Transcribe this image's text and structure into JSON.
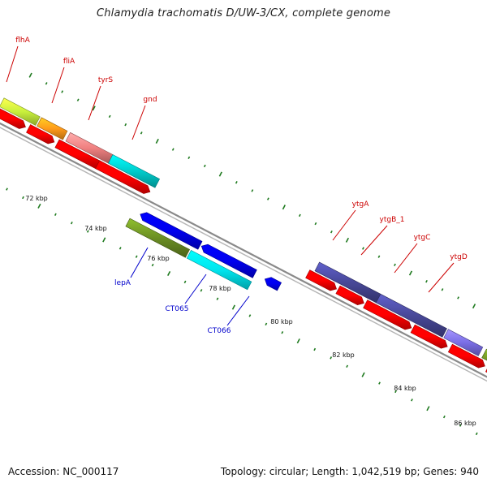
{
  "title": "Chlamydia trachomatis D/UW-3/CX, complete genome",
  "footer": {
    "accession": "Accession: NC_000117",
    "summary": "Topology: circular; Length: 1,042,519 bp; Genes: 940"
  },
  "colors": {
    "backbone": "#8a8a8a",
    "tick": "#1f7a1f",
    "forward_label": "#cc0000",
    "reverse_label": "#0000cc",
    "cds_red": "#ff0000",
    "blue_feature": "#0000ee",
    "cyan_feature": "#00e5ee",
    "olive_feature": "#6b8e23"
  },
  "scale_labels": [
    "72 kbp",
    "74 kbp",
    "76 kbp",
    "78 kbp",
    "80 kbp",
    "82 kbp",
    "84 kbp",
    "86 kbp"
  ],
  "forward_genes": [
    "flhA",
    "fliA",
    "tyrS",
    "gnd",
    "ytgA",
    "ytgB_1",
    "ytgC",
    "ytgD"
  ],
  "reverse_genes": [
    "lepA",
    "CT065",
    "CT066"
  ]
}
